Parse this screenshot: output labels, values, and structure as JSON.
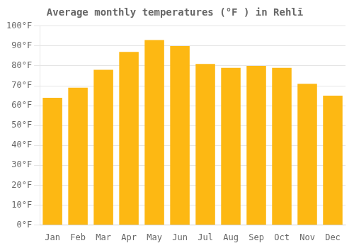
{
  "chart_data": {
    "type": "bar",
    "title": "Average monthly temperatures (°F ) in Rehlī",
    "categories": [
      "Jan",
      "Feb",
      "Mar",
      "Apr",
      "May",
      "Jun",
      "Jul",
      "Aug",
      "Sep",
      "Oct",
      "Nov",
      "Dec"
    ],
    "values": [
      64,
      69,
      78,
      87,
      93,
      90,
      81,
      79,
      80,
      79,
      71,
      65
    ],
    "color": "#FDB813",
    "ylim": [
      0,
      100
    ],
    "yticks": [
      {
        "value": 0,
        "label": "0°F"
      },
      {
        "value": 10,
        "label": "10°F"
      },
      {
        "value": 20,
        "label": "20°F"
      },
      {
        "value": 30,
        "label": "30°F"
      },
      {
        "value": 40,
        "label": "40°F"
      },
      {
        "value": 50,
        "label": "50°F"
      },
      {
        "value": 60,
        "label": "60°F"
      },
      {
        "value": 70,
        "label": "70°F"
      },
      {
        "value": 80,
        "label": "80°F"
      },
      {
        "value": 90,
        "label": "90°F"
      },
      {
        "value": 100,
        "label": "100°F"
      }
    ],
    "grid": true
  }
}
